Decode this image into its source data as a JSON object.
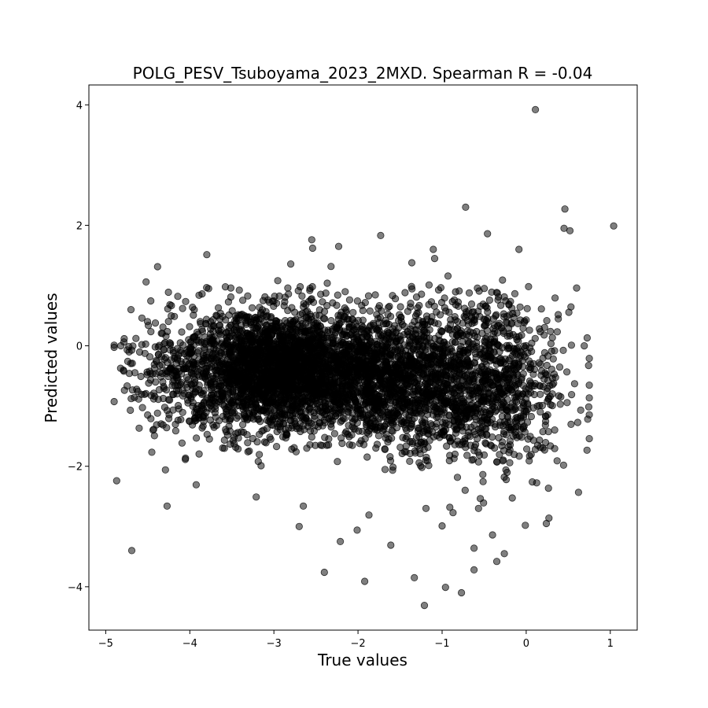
{
  "chart_data": {
    "type": "scatter",
    "title": "POLG_PESV_Tsuboyama_2023_2MXD. Spearman R = -0.04",
    "xlabel": "True values",
    "ylabel": "Predicted values",
    "xlim": [
      -5.2,
      1.32
    ],
    "ylim": [
      -4.72,
      4.33
    ],
    "xticks": [
      -5,
      -4,
      -3,
      -2,
      -1,
      0,
      1
    ],
    "yticks": [
      -4,
      -2,
      0,
      2,
      4
    ],
    "xtick_labels": [
      "−5",
      "−4",
      "−3",
      "−2",
      "−1",
      "0",
      "1"
    ],
    "ytick_labels": [
      "−4",
      "−2",
      "0",
      "2",
      "4"
    ],
    "grid": false,
    "marker_color": "#000000",
    "marker_alpha": 0.5,
    "approx_point_count": 5000,
    "outliers": [
      {
        "x": 0.11,
        "y": 3.92
      },
      {
        "x": -0.72,
        "y": 2.3
      },
      {
        "x": 0.46,
        "y": 2.27
      },
      {
        "x": 1.04,
        "y": 1.99
      },
      {
        "x": 0.45,
        "y": 1.95
      },
      {
        "x": 0.52,
        "y": 1.91
      },
      {
        "x": -0.46,
        "y": 1.86
      },
      {
        "x": -1.73,
        "y": 1.83
      },
      {
        "x": -2.55,
        "y": 1.76
      },
      {
        "x": -2.54,
        "y": 1.62
      },
      {
        "x": -2.23,
        "y": 1.65
      },
      {
        "x": -4.9,
        "y": 0.01
      },
      {
        "x": -4.87,
        "y": -2.24
      },
      {
        "x": -4.69,
        "y": -3.4
      },
      {
        "x": -4.29,
        "y": -2.06
      },
      {
        "x": -4.27,
        "y": -2.66
      },
      {
        "x": -4.7,
        "y": 0.6
      },
      {
        "x": -4.52,
        "y": 1.06
      },
      {
        "x": 0.69,
        "y": 0.0
      },
      {
        "x": 0.6,
        "y": 0.96
      },
      {
        "x": -3.21,
        "y": -2.51
      },
      {
        "x": -2.7,
        "y": -3.0
      },
      {
        "x": -2.65,
        "y": -2.66
      },
      {
        "x": -2.4,
        "y": -3.76
      },
      {
        "x": -2.21,
        "y": -3.25
      },
      {
        "x": -2.01,
        "y": -3.06
      },
      {
        "x": -1.92,
        "y": -3.91
      },
      {
        "x": -1.87,
        "y": -2.81
      },
      {
        "x": -1.61,
        "y": -3.31
      },
      {
        "x": -1.33,
        "y": -3.85
      },
      {
        "x": -1.21,
        "y": -4.31
      },
      {
        "x": -0.96,
        "y": -4.01
      },
      {
        "x": -0.77,
        "y": -4.1
      },
      {
        "x": -0.62,
        "y": -3.72
      },
      {
        "x": -0.62,
        "y": -3.36
      },
      {
        "x": -0.4,
        "y": -3.14
      },
      {
        "x": -0.35,
        "y": -3.58
      },
      {
        "x": -0.26,
        "y": -3.45
      },
      {
        "x": -0.01,
        "y": -2.98
      },
      {
        "x": 0.24,
        "y": -2.95
      },
      {
        "x": 0.27,
        "y": -2.86
      },
      {
        "x": -1.0,
        "y": -2.99
      },
      {
        "x": -0.87,
        "y": -2.77
      }
    ],
    "clusters": [
      {
        "cx": -2.9,
        "cy": -0.4,
        "sx": 0.55,
        "sy": 0.5,
        "n": 2600
      },
      {
        "cx": -1.6,
        "cy": -0.55,
        "sx": 0.45,
        "sy": 0.55,
        "n": 1200
      },
      {
        "cx": -0.5,
        "cy": -0.6,
        "sx": 0.45,
        "sy": 0.7,
        "n": 1100
      },
      {
        "cx": -4.1,
        "cy": -0.45,
        "sx": 0.35,
        "sy": 0.6,
        "n": 300
      }
    ],
    "x_range_observed": [
      -4.9,
      1.04
    ],
    "y_range_observed": [
      -4.31,
      3.92
    ]
  }
}
